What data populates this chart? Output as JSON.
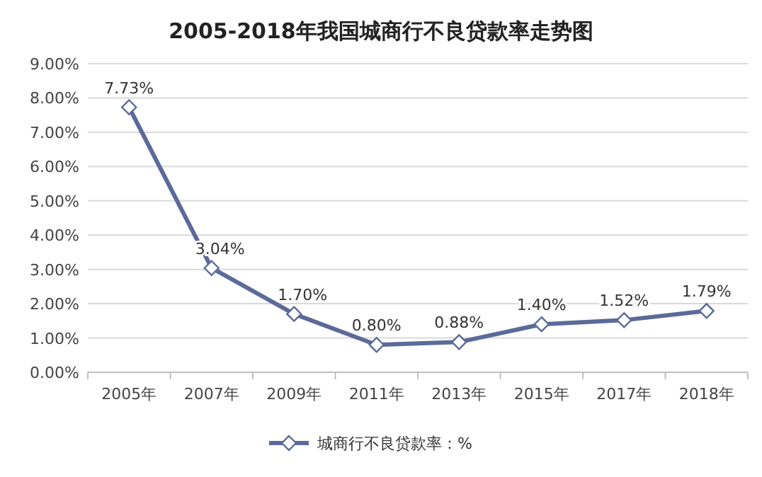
{
  "chart_data": {
    "type": "line",
    "title": "2005-2018年我国城商行不良贷款率走势图",
    "categories": [
      "2005年",
      "2007年",
      "2009年",
      "2011年",
      "2013年",
      "2015年",
      "2017年",
      "2018年"
    ],
    "series": [
      {
        "name": "城商行不良贷款率：%",
        "color": "#5b6a99",
        "values": [
          7.73,
          3.04,
          1.7,
          0.8,
          0.88,
          1.4,
          1.52,
          1.79
        ],
        "value_labels": [
          "7.73%",
          "3.04%",
          "1.70%",
          "0.80%",
          "0.88%",
          "1.40%",
          "1.52%",
          "1.79%"
        ]
      }
    ],
    "ylim": [
      0,
      9
    ],
    "yticks": [
      {
        "value": 0,
        "label": "0.00%"
      },
      {
        "value": 1,
        "label": "1.00%"
      },
      {
        "value": 2,
        "label": "2.00%"
      },
      {
        "value": 3,
        "label": "3.00%"
      },
      {
        "value": 4,
        "label": "4.00%"
      },
      {
        "value": 5,
        "label": "5.00%"
      },
      {
        "value": 6,
        "label": "6.00%"
      },
      {
        "value": 7,
        "label": "7.00%"
      },
      {
        "value": 8,
        "label": "8.00%"
      },
      {
        "value": 9,
        "label": "9.00%"
      }
    ],
    "grid": "y",
    "legend": "bottom",
    "marker": "diamond",
    "line_style": "solid"
  }
}
